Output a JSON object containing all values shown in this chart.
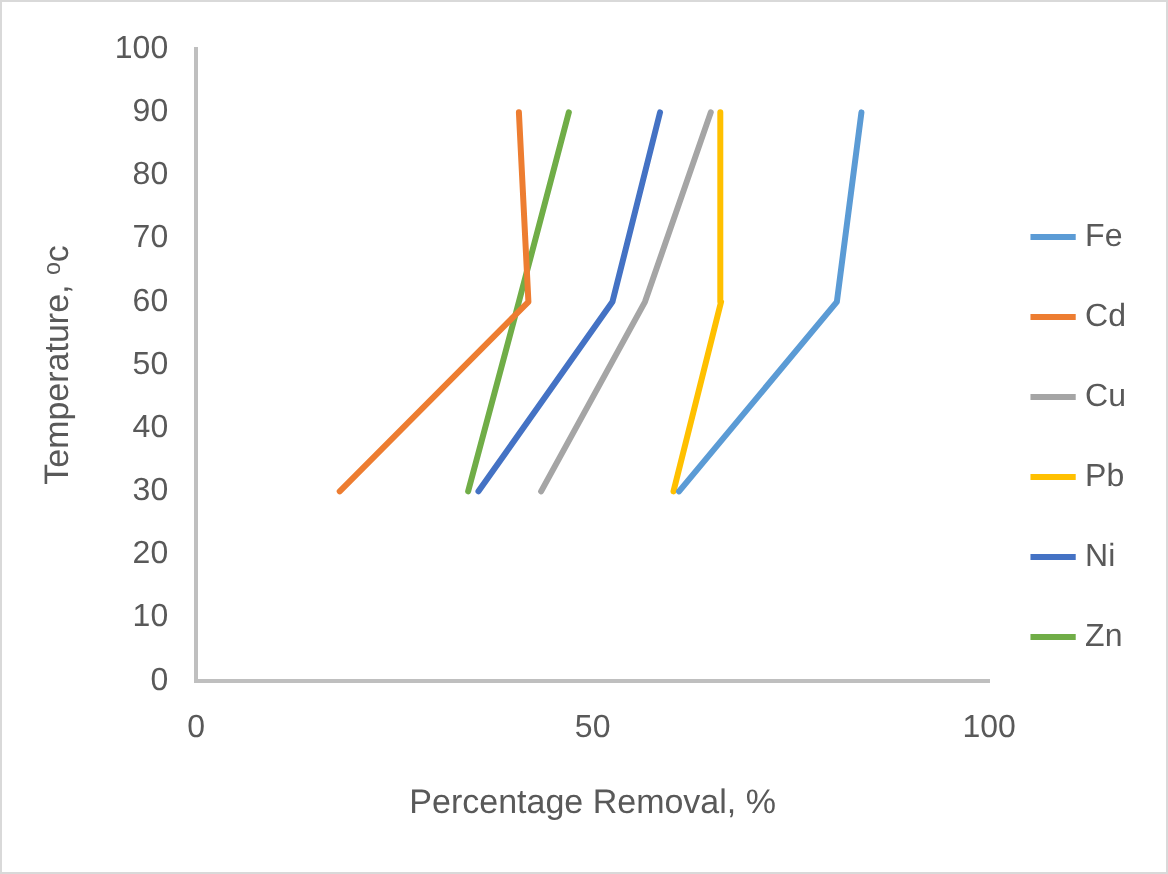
{
  "chart_data": {
    "type": "line",
    "xlabel": "Percentage Removal, %",
    "ylabel": "Temperature, ᵒc",
    "xlim": [
      0,
      100
    ],
    "xticks": [
      0,
      50,
      100
    ],
    "ylim": [
      0,
      100
    ],
    "yticks": [
      0,
      10,
      20,
      30,
      40,
      50,
      60,
      70,
      80,
      90,
      100
    ],
    "grid": false,
    "legend": "right",
    "marker": "none",
    "line_style": "solid",
    "series": [
      {
        "name": "Fe",
        "color": "#5b9bd5",
        "x": [
          60.9,
          80.8,
          83.9
        ],
        "values": [
          30,
          60,
          90
        ]
      },
      {
        "name": "Cd",
        "color": "#ed7d31",
        "x": [
          18.1,
          41.9,
          40.7
        ],
        "values": [
          30,
          60,
          90
        ]
      },
      {
        "name": "Cu",
        "color": "#a5a5a5",
        "x": [
          43.5,
          56.6,
          64.9
        ],
        "values": [
          30,
          60,
          90
        ]
      },
      {
        "name": "Pb",
        "color": "#ffc000",
        "x": [
          60.2,
          66.2,
          66.1
        ],
        "values": [
          30,
          60,
          90
        ]
      },
      {
        "name": "Ni",
        "color": "#4472c4",
        "x": [
          35.6,
          52.5,
          58.5
        ],
        "values": [
          30,
          60,
          90
        ]
      },
      {
        "name": "Zn",
        "color": "#70ad47",
        "x": [
          34.3,
          40.7,
          47.0
        ],
        "values": [
          30,
          60,
          90
        ]
      }
    ]
  }
}
